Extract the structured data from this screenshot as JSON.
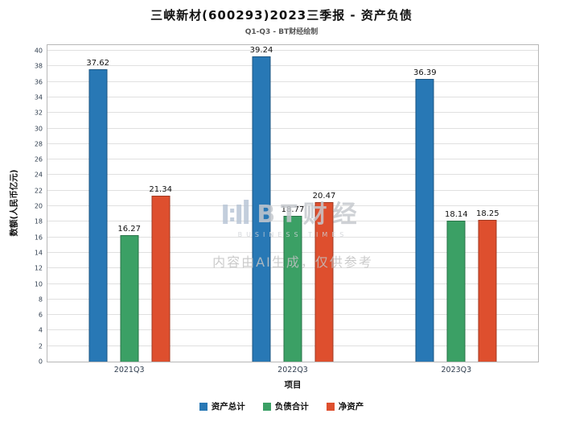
{
  "header": {
    "title": "三峡新材(600293)2023三季报 - 资产负债",
    "subtitle": "Q1-Q3 - BT财经绘制"
  },
  "chart_data": {
    "type": "bar",
    "categories": [
      "2021Q3",
      "2022Q3",
      "2023Q3"
    ],
    "series": [
      {
        "name": "资产总计",
        "color": "#2878b5",
        "values": [
          37.62,
          39.24,
          36.39
        ]
      },
      {
        "name": "负债合计",
        "color": "#3ba065",
        "values": [
          16.27,
          18.77,
          18.14
        ]
      },
      {
        "name": "净资产",
        "color": "#de4f2e",
        "values": [
          21.34,
          20.47,
          18.25
        ]
      }
    ],
    "title": "三峡新材(600293)2023三季报 - 资产负债",
    "xlabel": "项目",
    "ylabel": "数额(人民币亿元)",
    "ylim": [
      0,
      40
    ],
    "ytick_step": 2,
    "grid": true,
    "legend_position": "bottom"
  },
  "watermark": {
    "logo": "BT财经",
    "logo_sub": "BUSINESS TIMES",
    "text": "内容由AI生成，仅供参考"
  }
}
